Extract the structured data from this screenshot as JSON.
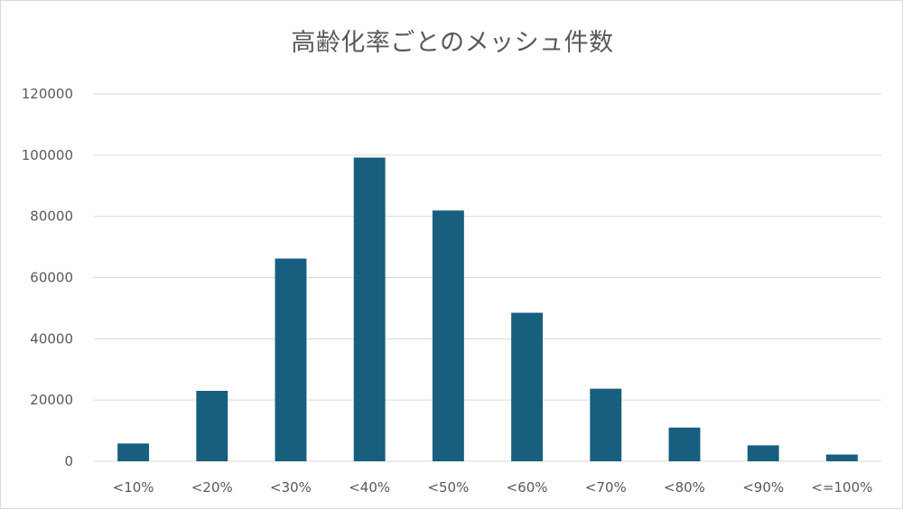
{
  "chart_data": {
    "type": "bar",
    "title": "高齢化率ごとのメッシュ件数",
    "xlabel": "",
    "ylabel": "",
    "categories": [
      "<10%",
      "<20%",
      "<30%",
      "<40%",
      "<50%",
      "<60%",
      "<70%",
      "<80%",
      "<90%",
      "<=100%"
    ],
    "values": [
      5800,
      23000,
      66200,
      99200,
      81900,
      48500,
      23700,
      11000,
      5200,
      2200
    ],
    "ylim": [
      0,
      120000
    ],
    "yticks": [
      0,
      20000,
      40000,
      60000,
      80000,
      100000,
      120000
    ],
    "ytick_labels": [
      "0",
      "20000",
      "40000",
      "60000",
      "80000",
      "100000",
      "120000"
    ],
    "grid": true,
    "legend": "none",
    "colors": {
      "bar": "#175e7f",
      "grid": "#d9d9d9",
      "text": "#595959"
    }
  }
}
